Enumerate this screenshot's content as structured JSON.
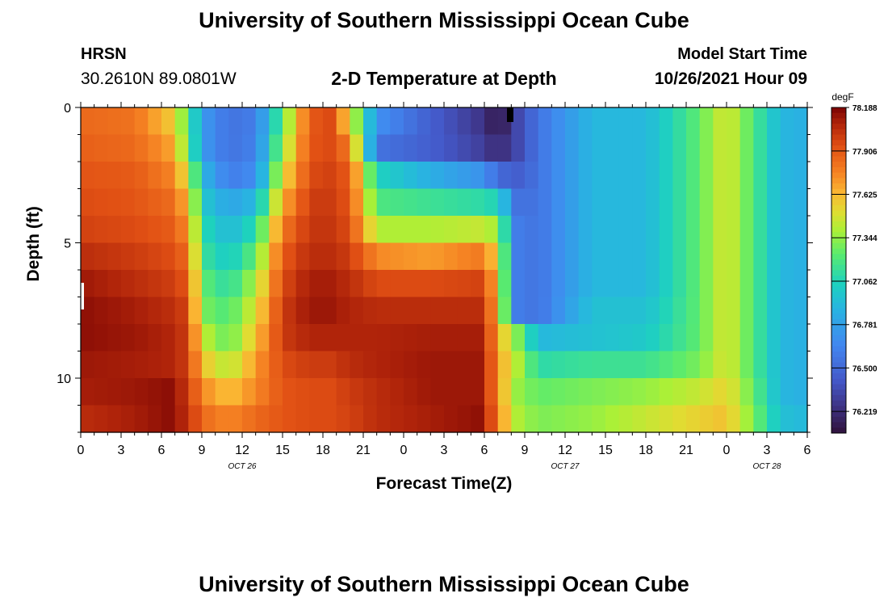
{
  "header": {
    "title": "University of Southern Mississippi Ocean Cube",
    "station": "HRSN",
    "coordinates": "30.2610N  89.0801W",
    "plot_title": "2-D Temperature at Depth",
    "model_start_label": "Model Start Time",
    "model_start_value": "10/26/2021 Hour 09"
  },
  "footer": {
    "title": "University of Southern Mississippi Ocean Cube"
  },
  "chart_data": {
    "type": "heatmap",
    "title": "2-D Temperature at Depth",
    "xlabel": "Forecast Time(Z)",
    "ylabel": "Depth (ft)",
    "x_tick_labels": [
      "0",
      "3",
      "6",
      "9",
      "12",
      "15",
      "18",
      "21",
      "0",
      "3",
      "6",
      "9",
      "12",
      "15",
      "18",
      "21",
      "0",
      "3",
      "6"
    ],
    "x_hours": [
      0,
      3,
      6,
      9,
      12,
      15,
      18,
      21,
      24,
      27,
      30,
      33,
      36,
      39,
      42,
      45,
      48,
      51,
      54
    ],
    "xlim": [
      0,
      54
    ],
    "date_labels": [
      {
        "label": "OCT 26",
        "hour": 12
      },
      {
        "label": "OCT 27",
        "hour": 36
      },
      {
        "label": "OCT 28",
        "hour": 51
      }
    ],
    "y_tick_labels": [
      "0",
      "5",
      "10"
    ],
    "y_ticks": [
      0,
      5,
      10
    ],
    "ylim": [
      0,
      12
    ],
    "depth_levels": [
      0.5,
      1.5,
      2.5,
      3.5,
      4.5,
      5.5,
      6.5,
      7.5,
      8.5,
      9.5,
      10.5,
      11.5
    ],
    "colorbar": {
      "unit": "degF",
      "min": 76.078,
      "max": 78.188,
      "labels": [
        "78.188",
        "77.906",
        "77.625",
        "77.344",
        "77.062",
        "76.781",
        "76.500",
        "76.219"
      ]
    },
    "temperature_keyframes": {
      "hours": [
        0,
        4,
        6.5,
        8,
        9,
        11,
        13,
        15,
        17,
        18.5,
        20,
        22,
        26,
        30,
        31,
        32.5,
        34,
        38,
        42,
        46,
        48,
        50,
        52,
        54
      ],
      "rows": [
        [
          77.85,
          77.82,
          77.6,
          77.25,
          76.75,
          76.55,
          76.6,
          77.25,
          77.9,
          77.95,
          77.55,
          76.7,
          76.45,
          76.25,
          76.1,
          76.35,
          76.55,
          76.9,
          76.9,
          77.25,
          77.5,
          77.2,
          76.9,
          76.85
        ],
        [
          77.88,
          77.85,
          77.7,
          77.3,
          76.75,
          76.55,
          76.62,
          77.35,
          77.92,
          77.95,
          77.8,
          76.55,
          76.45,
          76.3,
          76.2,
          76.35,
          76.55,
          76.9,
          76.9,
          77.25,
          77.5,
          77.2,
          76.9,
          76.85
        ],
        [
          77.92,
          77.9,
          77.78,
          77.5,
          76.9,
          76.6,
          76.68,
          77.5,
          77.95,
          77.98,
          77.9,
          77.05,
          76.85,
          76.7,
          76.5,
          76.45,
          76.55,
          76.9,
          76.9,
          77.25,
          77.5,
          77.2,
          76.9,
          76.85
        ],
        [
          77.95,
          77.92,
          77.85,
          77.65,
          77.0,
          76.8,
          76.9,
          77.65,
          78.0,
          78.0,
          77.92,
          77.2,
          77.15,
          77.1,
          77.05,
          76.55,
          76.55,
          76.9,
          76.9,
          77.25,
          77.5,
          77.2,
          76.9,
          76.85
        ],
        [
          77.98,
          77.95,
          77.9,
          77.75,
          77.1,
          76.9,
          77.1,
          77.8,
          78.02,
          78.02,
          77.95,
          77.4,
          77.4,
          77.45,
          77.35,
          76.6,
          76.55,
          76.9,
          76.9,
          77.25,
          77.5,
          77.2,
          76.9,
          76.85
        ],
        [
          78.05,
          78.0,
          77.95,
          77.85,
          77.15,
          77.0,
          77.25,
          77.9,
          78.05,
          78.05,
          78.0,
          77.75,
          77.7,
          77.8,
          77.5,
          76.6,
          76.55,
          76.9,
          76.9,
          77.25,
          77.5,
          77.2,
          76.9,
          76.85
        ],
        [
          78.12,
          78.05,
          78.0,
          77.92,
          77.25,
          77.1,
          77.4,
          77.95,
          78.1,
          78.1,
          78.05,
          77.95,
          77.95,
          77.98,
          77.55,
          76.6,
          76.55,
          76.9,
          76.9,
          77.25,
          77.5,
          77.2,
          76.9,
          76.85
        ],
        [
          78.15,
          78.1,
          78.05,
          77.98,
          77.3,
          77.2,
          77.5,
          78.0,
          78.12,
          78.12,
          78.08,
          78.05,
          78.05,
          78.05,
          77.6,
          76.6,
          76.55,
          76.95,
          76.95,
          77.25,
          77.5,
          77.2,
          76.9,
          76.85
        ],
        [
          78.15,
          78.12,
          78.08,
          78.0,
          77.45,
          77.25,
          77.6,
          78.0,
          78.08,
          78.08,
          78.08,
          78.08,
          78.1,
          78.1,
          77.65,
          77.3,
          76.9,
          76.95,
          77.0,
          77.25,
          77.5,
          77.2,
          76.9,
          76.85
        ],
        [
          78.12,
          78.1,
          78.08,
          78.0,
          77.6,
          77.4,
          77.7,
          77.95,
          78.0,
          78.0,
          78.05,
          78.08,
          78.12,
          78.12,
          77.7,
          77.4,
          77.1,
          77.15,
          77.15,
          77.3,
          77.5,
          77.2,
          76.9,
          76.85
        ],
        [
          78.1,
          78.12,
          78.15,
          78.02,
          77.75,
          77.6,
          77.75,
          77.92,
          77.95,
          77.95,
          78.0,
          78.05,
          78.12,
          78.12,
          77.7,
          77.35,
          77.25,
          77.3,
          77.35,
          77.45,
          77.55,
          77.25,
          76.9,
          76.85
        ],
        [
          78.05,
          78.1,
          78.15,
          78.05,
          77.85,
          77.75,
          77.85,
          77.92,
          77.95,
          77.95,
          77.98,
          78.05,
          78.1,
          78.15,
          77.75,
          77.4,
          77.3,
          77.35,
          77.45,
          77.55,
          77.6,
          77.3,
          76.95,
          76.9
        ]
      ]
    }
  }
}
